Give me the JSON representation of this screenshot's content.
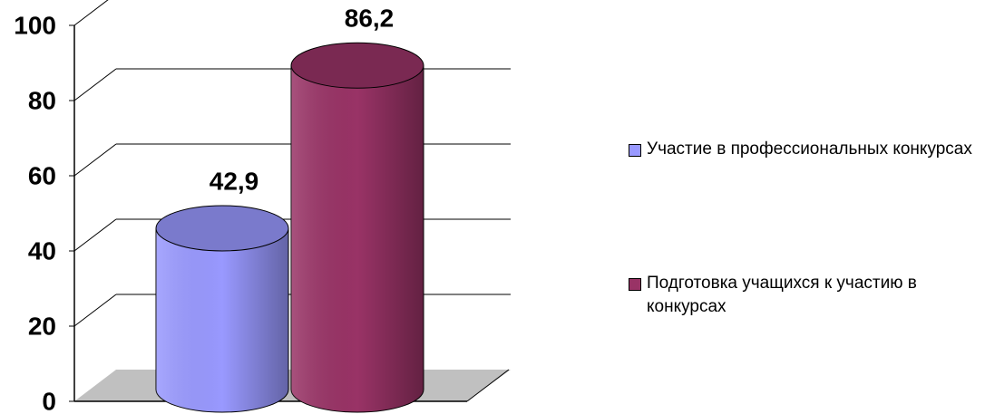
{
  "chart_data": {
    "type": "cylinder",
    "categories": [
      null
    ],
    "series": [
      {
        "name": "Участие в профессиональных конкурсах",
        "color": "#9999ff",
        "values": [
          42.9
        ],
        "value_labels": [
          "42,9"
        ]
      },
      {
        "name": "Подготовка учащихся к участию в конкурсах",
        "color": "#993366",
        "values": [
          86.2
        ],
        "value_labels": [
          "86,2"
        ]
      }
    ],
    "ylim": [
      0,
      100
    ],
    "yticks": [
      0,
      20,
      40,
      60,
      80,
      100
    ],
    "grid": true,
    "legend": "right"
  }
}
